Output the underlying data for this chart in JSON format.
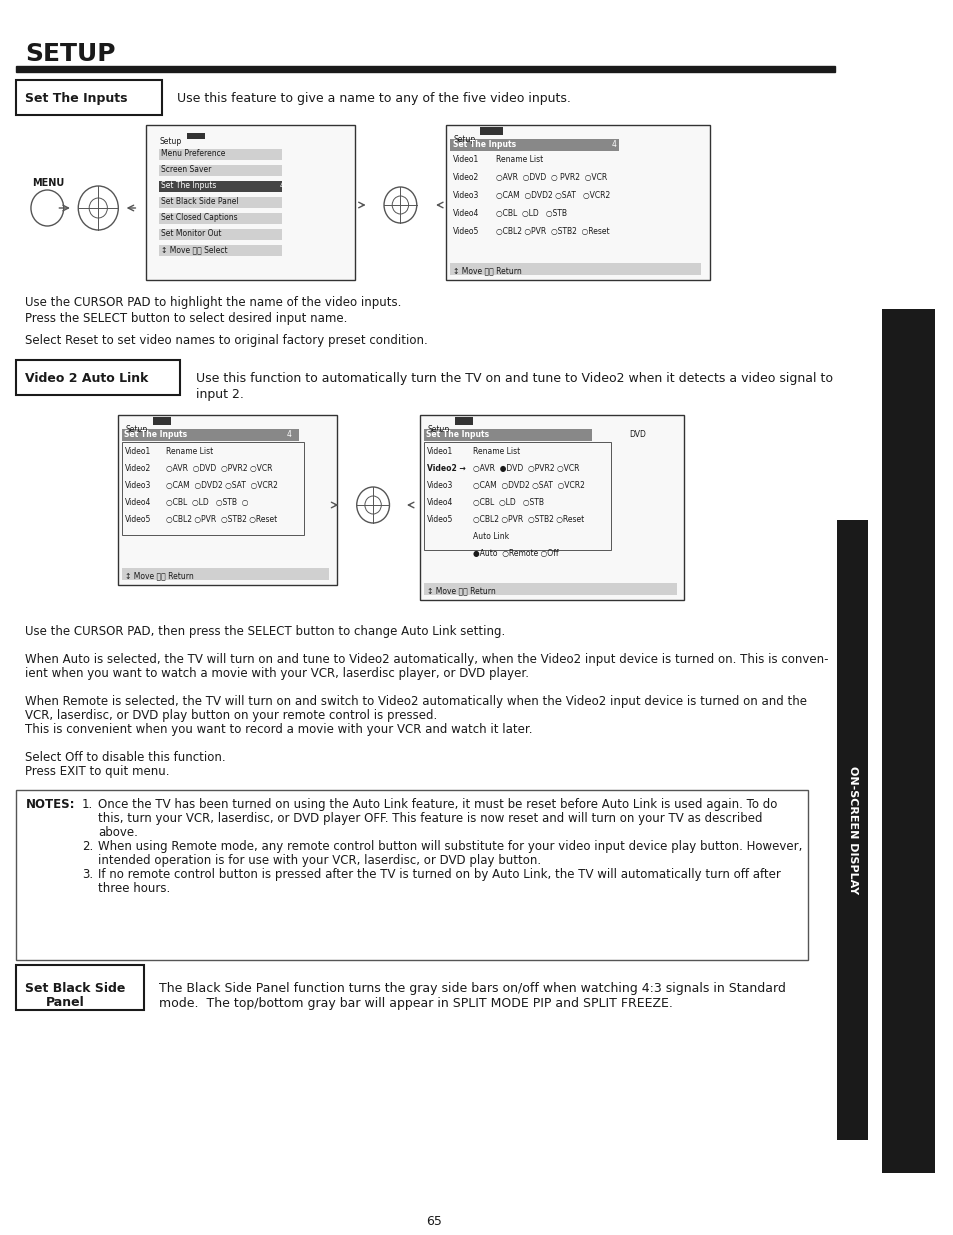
{
  "title": "SETUP",
  "page_number": "65",
  "bg_color": "#ffffff",
  "text_color": "#1a1a1a",
  "section1_label": "Set The Inputs",
  "section1_desc": "Use this feature to give a name to any of the five video inputs.",
  "section1_text1": "Use the CURSOR PAD to highlight the name of the video inputs.",
  "section1_text2": "Press the SELECT button to select desired input name.",
  "section1_text3": "Select Reset to set video names to original factory preset condition.",
  "section2_label": "Video 2 Auto Link",
  "section2_desc1": "Use this function to automatically turn the TV on and tune to Video2 when it detects a video signal to",
  "section2_desc2": "input 2.",
  "section2_text1": "Use the CURSOR PAD, then press the SELECT button to change Auto Link setting.",
  "section2_text2": "When Auto is selected, the TV will turn on and tune to Video2 automatically, when the Video2 input device is turned on. This is conven-",
  "section2_text3": "ient when you want to watch a movie with your VCR, laserdisc player, or DVD player.",
  "section2_text4": "When Remote is selected, the TV will turn on and switch to Video2 automatically when the Video2 input device is turned on and the",
  "section2_text5": "VCR, laserdisc, or DVD play button on your remote control is pressed.",
  "section2_text6": "This is convenient when you want to record a movie with your VCR and watch it later.",
  "section2_text7": "Select Off to disable this function.",
  "section2_text8": "Press EXIT to quit menu.",
  "notes_label": "NOTES:",
  "note1": "1.   Once the TV has been turned on using the Auto Link feature, it must be reset before Auto Link is used again. To do\n      this, turn your VCR, laserdisc, or DVD player OFF. This feature is now reset and will turn on your TV as described\n      above.",
  "note2": "2.   When using Remote mode, any remote control button will substitute for your video input device play button. However,\n      intended operation is for use with your VCR, laserdisc, or DVD play button.",
  "note3": "3.   If no remote control button is pressed after the TV is turned on by Auto Link, the TV will automatically turn off after\n      three hours.",
  "section3_label": "Set Black Side\n    Panel",
  "section3_desc": "The Black Side Panel function turns the gray side bars on/off when watching 4:3 signals in Standard\nmode.  The top/bottom gray bar will appear in SPLIT MODE PIP and SPLIT FREEZE.",
  "sidebar_text": "ON-SCREEN DISPLAY"
}
